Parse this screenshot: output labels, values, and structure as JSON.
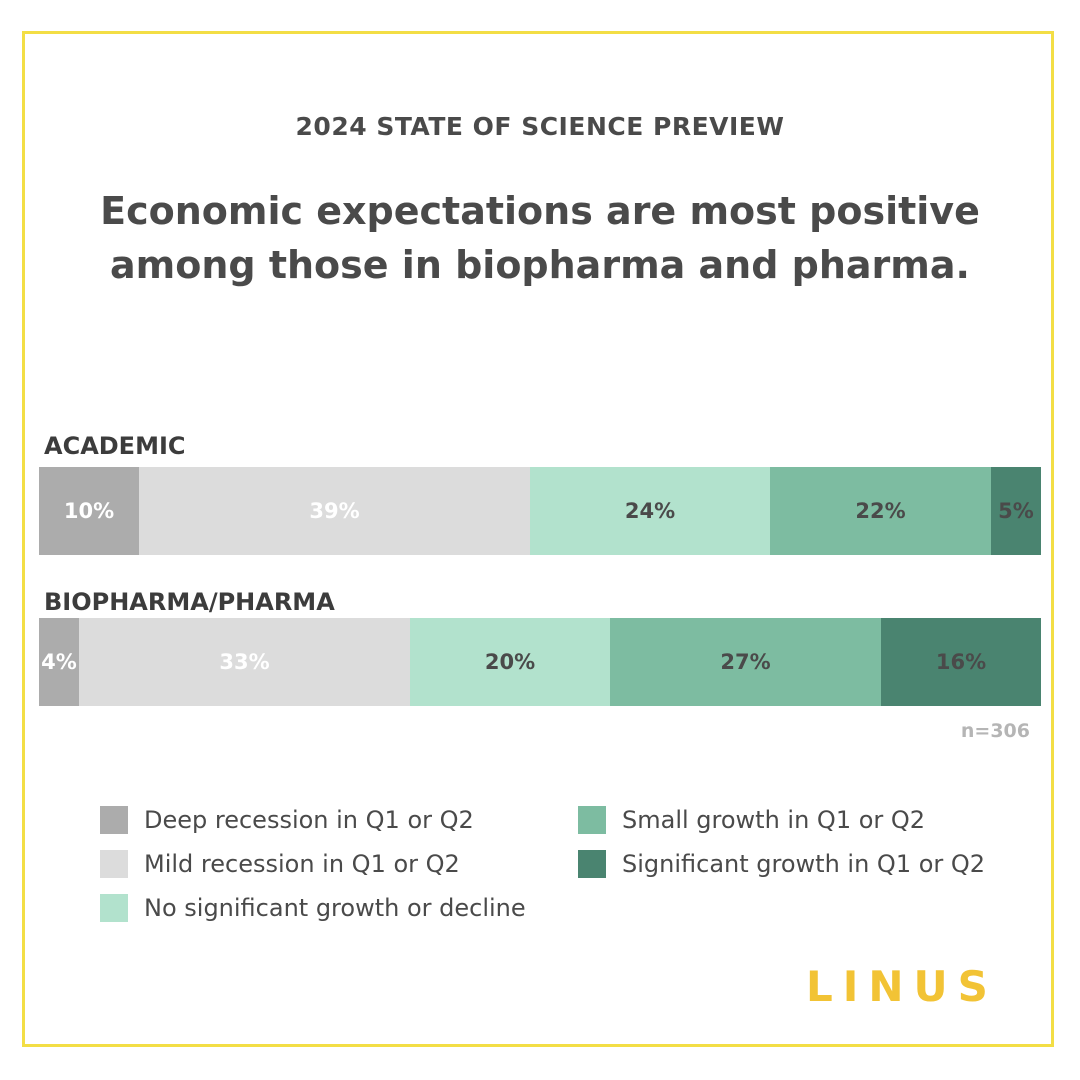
{
  "header": {
    "kicker": "2024 STATE OF SCIENCE PREVIEW",
    "title": "Economic expectations are most positive among those in biopharma and pharma."
  },
  "chart_data": {
    "type": "bar",
    "orientation": "horizontal",
    "stacked": true,
    "percent_stacked": true,
    "categories": [
      "ACADEMIC",
      "BIOPHARMA/PHARMA"
    ],
    "series": [
      {
        "name": "Deep recession in Q1 or Q2",
        "color": "#acacac",
        "label_color": "#ffffff",
        "values": [
          10,
          4
        ],
        "labels": [
          "10%",
          "4%"
        ]
      },
      {
        "name": "Mild recession in Q1 or Q2",
        "color": "#dcdcdc",
        "label_color": "#ffffff",
        "values": [
          39,
          33
        ],
        "labels": [
          "39%",
          "33%"
        ]
      },
      {
        "name": "No significant growth or decline",
        "color": "#b2e2cd",
        "label_color": "#4a4a4a",
        "values": [
          24,
          20
        ],
        "labels": [
          "24%",
          "20%"
        ]
      },
      {
        "name": "Small growth in Q1 or Q2",
        "color": "#7dbca1",
        "label_color": "#4a4a4a",
        "values": [
          22,
          27
        ],
        "labels": [
          "22%",
          "27%"
        ]
      },
      {
        "name": "Significant growth in Q1 or Q2",
        "color": "#4a8470",
        "label_color": "#4a4a4a",
        "values": [
          5,
          16
        ],
        "labels": [
          "5%",
          "16%"
        ]
      }
    ],
    "note": "n=306",
    "legend_position": "bottom",
    "grid": false
  },
  "brand": {
    "logo_text": "LINUS",
    "frame_color": "#f3de45"
  }
}
